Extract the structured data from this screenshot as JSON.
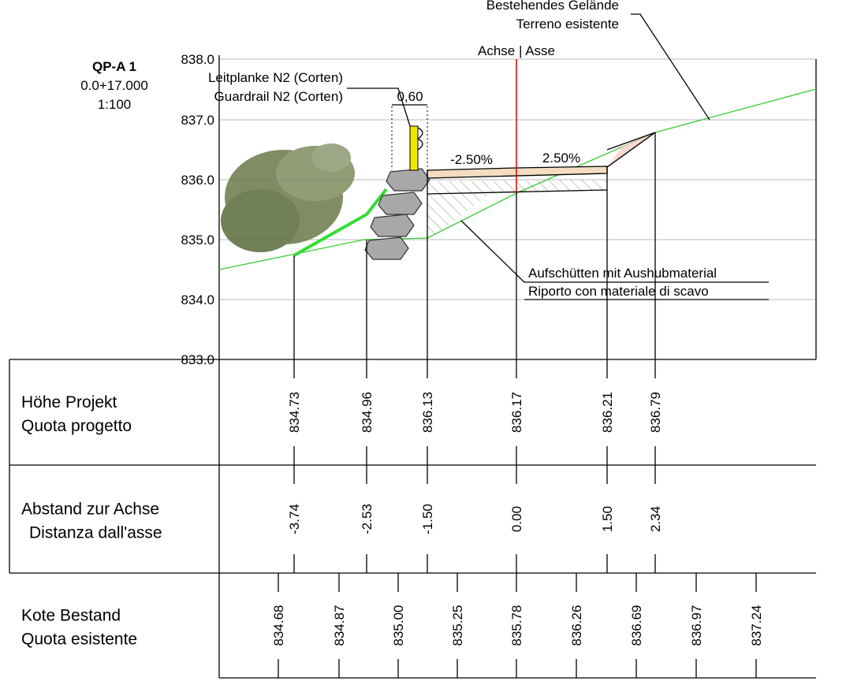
{
  "header": {
    "title": "QP-A 1",
    "station": "0.0+17.000",
    "scale": "1:100"
  },
  "elevation_axis": {
    "labels": [
      "838.0",
      "837.0",
      "836.0",
      "835.0",
      "834.0",
      "833.0"
    ]
  },
  "annotations": {
    "axis": "Achse | Asse",
    "terrain": [
      "Bestehendes Gelände",
      "Terreno esistente"
    ],
    "guardrail": [
      "Leitplanke N2 (Corten)",
      "Guardrail N2 (Corten)"
    ],
    "width": "0,60",
    "slope_left": "-2.50%",
    "slope_right": "2.50%",
    "fill": [
      "Aufschütten mit Aushubmaterial",
      "Riporto con materiale di scavo"
    ]
  },
  "table": {
    "rows": [
      {
        "label": [
          "Höhe Projekt",
          "Quota progetto"
        ],
        "values": [
          "834.73",
          "834.96",
          "836.13",
          "836.17",
          "836.21",
          "836.79"
        ]
      },
      {
        "label": [
          "Abstand zur Achse",
          "Distanza dall'asse"
        ],
        "values": [
          "-3.74",
          "-2.53",
          "-1.50",
          "0.00",
          "1.50",
          "2.34"
        ]
      },
      {
        "label": [
          "Kote Bestand",
          "Quota esistente"
        ],
        "values": [
          "834.68",
          "834.87",
          "835.00",
          "835.25",
          "835.78",
          "836.26",
          "836.69",
          "836.97",
          "837.24"
        ]
      }
    ]
  }
}
